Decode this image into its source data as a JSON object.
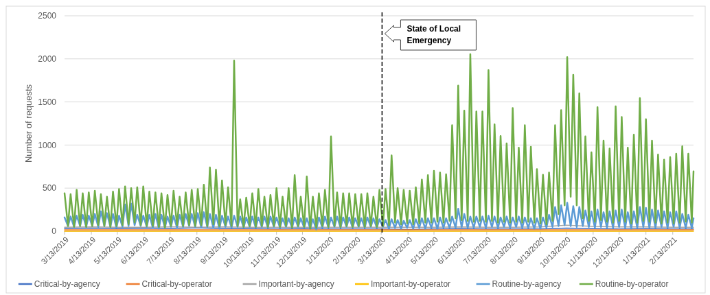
{
  "chart_data": {
    "type": "line",
    "ylabel": "Number of requests",
    "grid": "y",
    "legend": "bottom",
    "marker": "none",
    "line_style": "solid",
    "xlim": [
      "2019-03-13",
      "2021-03-09"
    ],
    "ylim": [
      0,
      2500
    ],
    "yticks": [
      0,
      500,
      1000,
      1500,
      2000,
      2500
    ],
    "xticks": [
      {
        "value": "2019-03-13",
        "label": "3/13/2019"
      },
      {
        "value": "2019-04-13",
        "label": "4/13/2019"
      },
      {
        "value": "2019-05-13",
        "label": "5/13/2019"
      },
      {
        "value": "2019-06-13",
        "label": "6/13/2019"
      },
      {
        "value": "2019-07-13",
        "label": "7/13/2019"
      },
      {
        "value": "2019-08-13",
        "label": "8/13/2019"
      },
      {
        "value": "2019-09-13",
        "label": "9/13/2019"
      },
      {
        "value": "2019-10-13",
        "label": "10/13/2019"
      },
      {
        "value": "2019-11-13",
        "label": "11/13/2019"
      },
      {
        "value": "2019-12-13",
        "label": "12/13/2019"
      },
      {
        "value": "2020-01-13",
        "label": "1/13/2020"
      },
      {
        "value": "2020-02-13",
        "label": "2/13/2020"
      },
      {
        "value": "2020-03-13",
        "label": "3/13/2020"
      },
      {
        "value": "2020-04-13",
        "label": "4/13/2020"
      },
      {
        "value": "2020-05-13",
        "label": "5/13/2020"
      },
      {
        "value": "2020-06-13",
        "label": "6/13/2020"
      },
      {
        "value": "2020-07-13",
        "label": "7/13/2020"
      },
      {
        "value": "2020-08-13",
        "label": "8/13/2020"
      },
      {
        "value": "2020-09-13",
        "label": "9/13/2020"
      },
      {
        "value": "2020-10-13",
        "label": "10/13/2020"
      },
      {
        "value": "2020-11-13",
        "label": "11/13/2020"
      },
      {
        "value": "2020-12-13",
        "label": "12/13/2020"
      },
      {
        "value": "2021-01-13",
        "label": "1/13/2021"
      },
      {
        "value": "2021-02-13",
        "label": "2/13/2021"
      }
    ],
    "ref_lines": [
      {
        "axis": "x",
        "value": "2020-03-14",
        "label": "State of Local Emergency",
        "color": "#000000",
        "line_style": "dashed"
      }
    ],
    "x": [
      "2019-03-13",
      "2019-03-17",
      "2019-03-20",
      "2019-03-24",
      "2019-03-27",
      "2019-03-31",
      "2019-04-03",
      "2019-04-07",
      "2019-04-10",
      "2019-04-14",
      "2019-04-17",
      "2019-04-21",
      "2019-04-24",
      "2019-04-28",
      "2019-05-01",
      "2019-05-05",
      "2019-05-08",
      "2019-05-12",
      "2019-05-15",
      "2019-05-19",
      "2019-05-22",
      "2019-05-26",
      "2019-05-29",
      "2019-06-02",
      "2019-06-05",
      "2019-06-09",
      "2019-06-12",
      "2019-06-16",
      "2019-06-19",
      "2019-06-23",
      "2019-06-26",
      "2019-06-30",
      "2019-07-03",
      "2019-07-07",
      "2019-07-10",
      "2019-07-14",
      "2019-07-17",
      "2019-07-21",
      "2019-07-24",
      "2019-07-28",
      "2019-07-31",
      "2019-08-04",
      "2019-08-07",
      "2019-08-11",
      "2019-08-14",
      "2019-08-18",
      "2019-08-21",
      "2019-08-25",
      "2019-08-28",
      "2019-09-01",
      "2019-09-04",
      "2019-09-08",
      "2019-09-11",
      "2019-09-15",
      "2019-09-18",
      "2019-09-22",
      "2019-09-25",
      "2019-09-29",
      "2019-10-02",
      "2019-10-06",
      "2019-10-09",
      "2019-10-13",
      "2019-10-16",
      "2019-10-20",
      "2019-10-23",
      "2019-10-27",
      "2019-10-30",
      "2019-11-03",
      "2019-11-06",
      "2019-11-10",
      "2019-11-13",
      "2019-11-17",
      "2019-11-20",
      "2019-11-24",
      "2019-11-27",
      "2019-12-01",
      "2019-12-04",
      "2019-12-08",
      "2019-12-11",
      "2019-12-15",
      "2019-12-18",
      "2019-12-22",
      "2019-12-25",
      "2019-12-29",
      "2020-01-01",
      "2020-01-05",
      "2020-01-08",
      "2020-01-12",
      "2020-01-15",
      "2020-01-19",
      "2020-01-22",
      "2020-01-26",
      "2020-01-29",
      "2020-02-02",
      "2020-02-05",
      "2020-02-09",
      "2020-02-12",
      "2020-02-16",
      "2020-02-19",
      "2020-02-23",
      "2020-02-26",
      "2020-03-01",
      "2020-03-04",
      "2020-03-08",
      "2020-03-11",
      "2020-03-15",
      "2020-03-18",
      "2020-03-22",
      "2020-03-25",
      "2020-03-29",
      "2020-04-01",
      "2020-04-05",
      "2020-04-08",
      "2020-04-12",
      "2020-04-15",
      "2020-04-19",
      "2020-04-22",
      "2020-04-26",
      "2020-04-29",
      "2020-05-03",
      "2020-05-06",
      "2020-05-10",
      "2020-05-13",
      "2020-05-17",
      "2020-05-20",
      "2020-05-24",
      "2020-05-27",
      "2020-05-31",
      "2020-06-03",
      "2020-06-07",
      "2020-06-10",
      "2020-06-14",
      "2020-06-17",
      "2020-06-21",
      "2020-06-24",
      "2020-06-28",
      "2020-07-01",
      "2020-07-05",
      "2020-07-08",
      "2020-07-12",
      "2020-07-15",
      "2020-07-19",
      "2020-07-22",
      "2020-07-26",
      "2020-07-29",
      "2020-08-02",
      "2020-08-05",
      "2020-08-09",
      "2020-08-12",
      "2020-08-16",
      "2020-08-19",
      "2020-08-23",
      "2020-08-26",
      "2020-08-30",
      "2020-09-02",
      "2020-09-06",
      "2020-09-09",
      "2020-09-13",
      "2020-09-16",
      "2020-09-20",
      "2020-09-23",
      "2020-09-27",
      "2020-09-30",
      "2020-10-04",
      "2020-10-07",
      "2020-10-11",
      "2020-10-14",
      "2020-10-18",
      "2020-10-21",
      "2020-10-25",
      "2020-10-28",
      "2020-11-01",
      "2020-11-04",
      "2020-11-08",
      "2020-11-11",
      "2020-11-15",
      "2020-11-18",
      "2020-11-22",
      "2020-11-25",
      "2020-11-29",
      "2020-12-02",
      "2020-12-06",
      "2020-12-09",
      "2020-12-13",
      "2020-12-16",
      "2020-12-20",
      "2020-12-23",
      "2020-12-27",
      "2020-12-30",
      "2021-01-03",
      "2021-01-06",
      "2021-01-10",
      "2021-01-13",
      "2021-01-17",
      "2021-01-20",
      "2021-01-24",
      "2021-01-27",
      "2021-01-31",
      "2021-02-03",
      "2021-02-07",
      "2021-02-10",
      "2021-02-14",
      "2021-02-17",
      "2021-02-21",
      "2021-02-24",
      "2021-02-28",
      "2021-03-03",
      "2021-03-07",
      "2021-03-09"
    ],
    "series": [
      {
        "name": "Critical-by-agency",
        "color": "#4472c4",
        "x": [
          "2019-03-13",
          "2019-04-13",
          "2019-05-13",
          "2019-06-13",
          "2019-07-13",
          "2019-08-13",
          "2019-09-13",
          "2019-10-13",
          "2019-11-13",
          "2019-12-13",
          "2020-01-13",
          "2020-02-13",
          "2020-03-13",
          "2020-04-13",
          "2020-05-13",
          "2020-06-13",
          "2020-07-13",
          "2020-08-13",
          "2020-09-13",
          "2020-10-13",
          "2020-11-13",
          "2020-12-13",
          "2021-01-13",
          "2021-02-13",
          "2021-03-09"
        ],
        "values": [
          30,
          35,
          30,
          35,
          30,
          40,
          30,
          30,
          25,
          30,
          25,
          25,
          25,
          20,
          25,
          30,
          25,
          25,
          25,
          35,
          30,
          25,
          30,
          25,
          25
        ]
      },
      {
        "name": "Critical-by-operator",
        "color": "#ed7d31",
        "x": [
          "2019-03-13",
          "2019-04-13",
          "2019-05-13",
          "2019-06-13",
          "2019-07-13",
          "2019-08-13",
          "2019-09-13",
          "2019-10-13",
          "2019-11-13",
          "2019-12-13",
          "2020-01-13",
          "2020-02-13",
          "2020-03-13",
          "2020-04-13",
          "2020-05-13",
          "2020-06-13",
          "2020-07-13",
          "2020-08-13",
          "2020-09-13",
          "2020-10-13",
          "2020-11-13",
          "2020-12-13",
          "2021-01-13",
          "2021-02-13",
          "2021-03-09"
        ],
        "values": [
          15,
          15,
          15,
          15,
          15,
          15,
          15,
          15,
          15,
          15,
          15,
          15,
          15,
          15,
          15,
          15,
          15,
          15,
          15,
          15,
          15,
          15,
          15,
          15,
          15
        ]
      },
      {
        "name": "Important-by-agency",
        "color": "#a5a5a5",
        "x": [
          "2019-03-13",
          "2019-04-13",
          "2019-05-13",
          "2019-06-13",
          "2019-07-13",
          "2019-08-13",
          "2019-09-13",
          "2019-10-13",
          "2019-11-13",
          "2019-12-13",
          "2020-01-13",
          "2020-02-13",
          "2020-03-13",
          "2020-04-13",
          "2020-05-13",
          "2020-06-13",
          "2020-07-13",
          "2020-08-13",
          "2020-09-13",
          "2020-10-13",
          "2020-11-13",
          "2020-12-13",
          "2021-01-13",
          "2021-02-13",
          "2021-03-09"
        ],
        "values": [
          45,
          50,
          45,
          45,
          50,
          45,
          50,
          45,
          45,
          45,
          45,
          45,
          45,
          45,
          45,
          50,
          45,
          45,
          50,
          70,
          55,
          50,
          50,
          45,
          45
        ]
      },
      {
        "name": "Important-by-operator",
        "color": "#ffc000",
        "x": [
          "2019-03-13",
          "2019-04-13",
          "2019-05-13",
          "2019-06-13",
          "2019-07-13",
          "2019-08-13",
          "2019-09-13",
          "2019-10-13",
          "2019-11-13",
          "2019-12-13",
          "2020-01-13",
          "2020-02-13",
          "2020-03-13",
          "2020-04-13",
          "2020-05-13",
          "2020-06-13",
          "2020-07-13",
          "2020-08-13",
          "2020-09-13",
          "2020-10-13",
          "2020-11-13",
          "2020-12-13",
          "2021-01-13",
          "2021-02-13",
          "2021-03-09"
        ],
        "values": [
          0,
          0,
          0,
          0,
          0,
          0,
          0,
          0,
          0,
          0,
          0,
          0,
          0,
          0,
          0,
          0,
          0,
          0,
          0,
          0,
          0,
          0,
          0,
          0,
          0
        ]
      },
      {
        "name": "Routine-by-agency",
        "color": "#5b9bd5",
        "values": [
          160,
          60,
          170,
          50,
          180,
          60,
          190,
          50,
          180,
          60,
          200,
          50,
          230,
          60,
          210,
          50,
          200,
          40,
          180,
          50,
          310,
          60,
          320,
          70,
          190,
          60,
          180,
          50,
          190,
          40,
          200,
          30,
          190,
          40,
          170,
          50,
          180,
          40,
          190,
          50,
          200,
          60,
          200,
          50,
          210,
          40,
          220,
          50,
          200,
          40,
          190,
          30,
          180,
          50,
          170,
          40,
          180,
          50,
          170,
          40,
          160,
          50,
          170,
          40,
          160,
          50,
          170,
          40,
          170,
          50,
          160,
          40,
          150,
          50,
          150,
          40,
          160,
          50,
          150,
          40,
          150,
          30,
          140,
          20,
          160,
          40,
          170,
          40,
          160,
          50,
          170,
          40,
          160,
          50,
          160,
          40,
          150,
          50,
          150,
          40,
          160,
          50,
          150,
          40,
          140,
          50,
          130,
          30,
          140,
          40,
          130,
          30,
          120,
          40,
          130,
          30,
          140,
          40,
          150,
          30,
          150,
          40,
          150,
          30,
          160,
          40,
          150,
          40,
          170,
          40,
          260,
          50,
          200,
          40,
          170,
          40,
          170,
          50,
          170,
          40,
          180,
          50,
          170,
          40,
          160,
          50,
          170,
          40,
          160,
          50,
          170,
          40,
          160,
          40,
          150,
          30,
          150,
          30,
          160,
          40,
          190,
          50,
          280,
          60,
          300,
          70,
          330,
          60,
          290,
          50,
          280,
          60,
          240,
          50,
          230,
          40,
          250,
          50,
          220,
          40,
          230,
          40,
          240,
          50,
          250,
          40,
          220,
          30,
          230,
          40,
          280,
          50,
          270,
          40,
          250,
          40,
          240,
          50,
          230,
          40,
          220,
          50,
          230,
          40,
          200,
          40,
          190,
          40,
          150
        ]
      },
      {
        "name": "Routine-by-operator",
        "color": "#70ad47",
        "values": [
          440,
          60,
          430,
          50,
          480,
          60,
          440,
          50,
          450,
          60,
          470,
          70,
          430,
          60,
          400,
          50,
          460,
          60,
          490,
          70,
          520,
          80,
          500,
          100,
          510,
          70,
          520,
          60,
          460,
          60,
          450,
          50,
          440,
          40,
          420,
          60,
          470,
          70,
          400,
          60,
          450,
          70,
          480,
          60,
          490,
          70,
          540,
          60,
          740,
          80,
          715,
          60,
          590,
          70,
          510,
          60,
          1980,
          60,
          370,
          50,
          390,
          60,
          440,
          50,
          490,
          60,
          400,
          50,
          420,
          60,
          500,
          50,
          400,
          60,
          500,
          40,
          650,
          60,
          400,
          50,
          635,
          30,
          400,
          40,
          440,
          60,
          480,
          50,
          1100,
          60,
          450,
          50,
          440,
          60,
          440,
          50,
          430,
          60,
          430,
          50,
          440,
          60,
          400,
          50,
          480,
          60,
          490,
          70,
          880,
          100,
          500,
          80,
          480,
          90,
          470,
          80,
          510,
          90,
          600,
          100,
          650,
          100,
          700,
          110,
          680,
          100,
          660,
          120,
          1230,
          150,
          1690,
          130,
          1400,
          120,
          2055,
          110,
          1390,
          120,
          1390,
          110,
          1870,
          120,
          1240,
          100,
          1105,
          110,
          1020,
          100,
          1430,
          110,
          970,
          100,
          1230,
          110,
          980,
          100,
          720,
          90,
          655,
          80,
          680,
          120,
          1230,
          200,
          1405,
          300,
          2020,
          400,
          1815,
          300,
          1600,
          150,
          1100,
          120,
          915,
          110,
          1440,
          130,
          1050,
          110,
          960,
          100,
          1450,
          120,
          1325,
          110,
          970,
          90,
          1120,
          100,
          1545,
          120,
          1300,
          110,
          1050,
          100,
          890,
          90,
          830,
          100,
          860,
          90,
          900,
          100,
          985,
          110,
          900,
          100,
          695
        ]
      }
    ]
  }
}
